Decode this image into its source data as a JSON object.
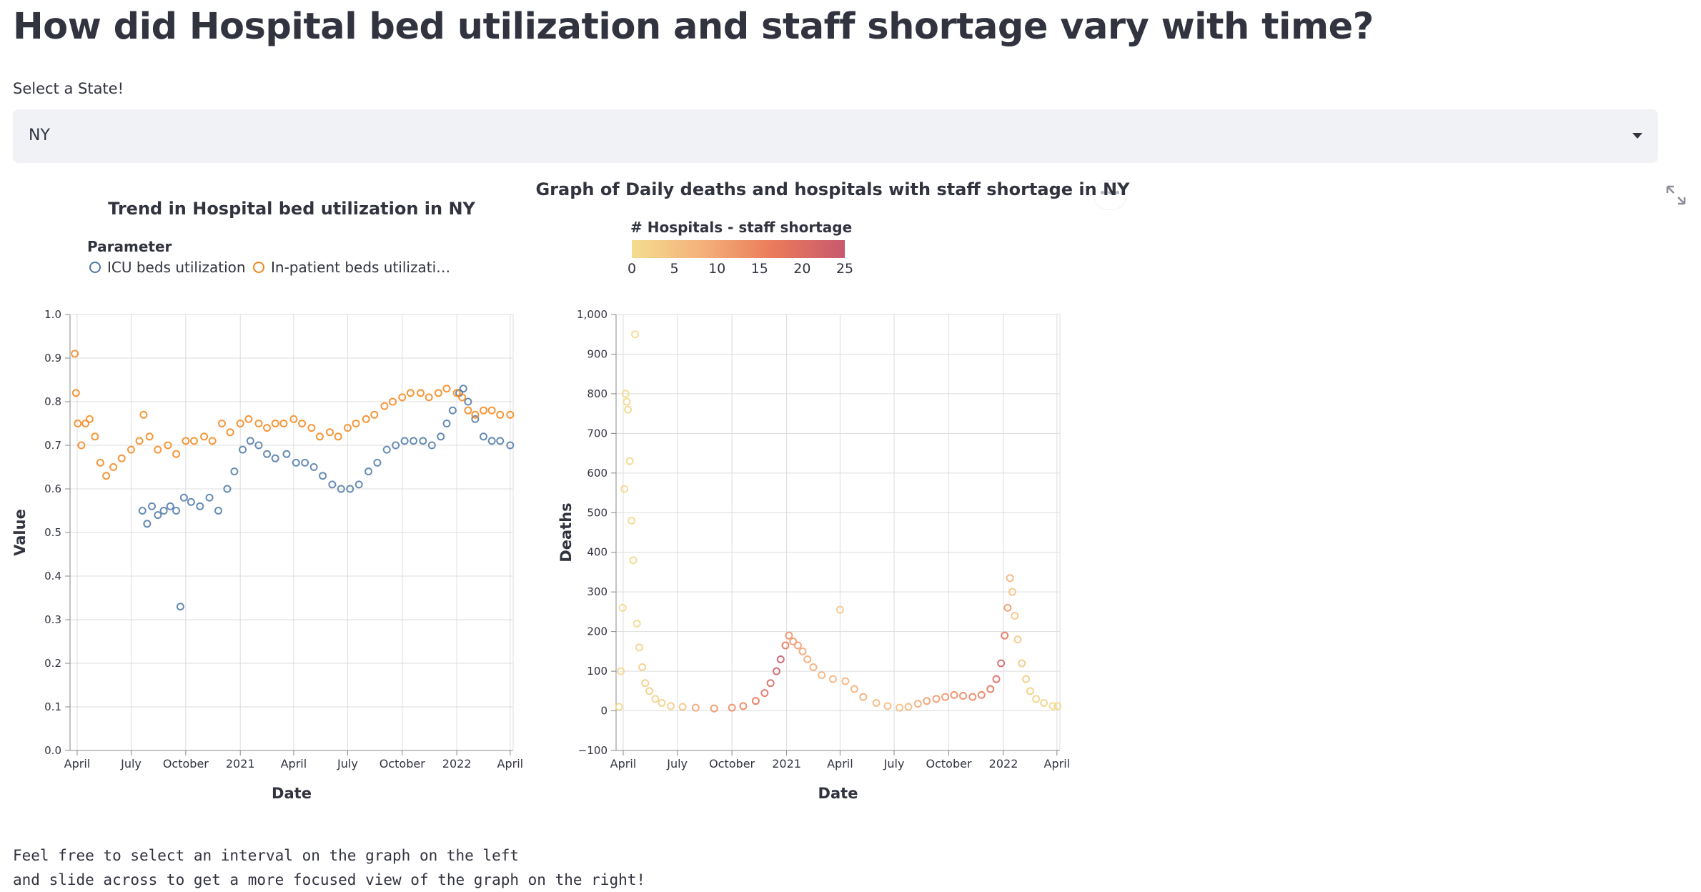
{
  "page": {
    "title": "How did Hospital bed utilization and staff shortage vary with time?",
    "select_label": "Select a State!",
    "selected_state": "NY",
    "menu_icon": "ellipsis-icon",
    "expand_icon": "fullscreen-expand-icon",
    "footer_line1": "Feel free to select an interval on the graph on the left",
    "footer_line2": "and slide across to get a more focused view of the graph on the right!"
  },
  "chart_data": [
    {
      "type": "scatter",
      "title": "Trend in Hospital bed utilization in NY",
      "xlabel": "Date",
      "ylabel": "Value",
      "x_type": "date",
      "x_range": [
        "2020-03-20",
        "2022-04-06"
      ],
      "xticks": [
        {
          "date": "2020-04-01",
          "label": "April"
        },
        {
          "date": "2020-07-01",
          "label": "July"
        },
        {
          "date": "2020-10-01",
          "label": "October"
        },
        {
          "date": "2021-01-01",
          "label": "2021"
        },
        {
          "date": "2021-04-01",
          "label": "April"
        },
        {
          "date": "2021-07-01",
          "label": "July"
        },
        {
          "date": "2021-10-01",
          "label": "October"
        },
        {
          "date": "2022-01-01",
          "label": "2022"
        },
        {
          "date": "2022-04-01",
          "label": "April"
        }
      ],
      "ylim": [
        0,
        1
      ],
      "yticks": [
        0.0,
        0.1,
        0.2,
        0.3,
        0.4,
        0.5,
        0.6,
        0.7,
        0.8,
        0.9,
        1.0
      ],
      "ytick_labels": [
        "0.0",
        "0.1",
        "0.2",
        "0.3",
        "0.4",
        "0.5",
        "0.6",
        "0.7",
        "0.8",
        "0.9",
        "1.0"
      ],
      "grid": true,
      "legend": {
        "title": "Parameter",
        "position": "top-left"
      },
      "series": [
        {
          "name": "ICU beds utilization",
          "color": "#4c78a8",
          "points": [
            [
              "2020-07-20",
              0.55
            ],
            [
              "2020-07-28",
              0.52
            ],
            [
              "2020-08-05",
              0.56
            ],
            [
              "2020-08-15",
              0.54
            ],
            [
              "2020-08-25",
              0.55
            ],
            [
              "2020-09-05",
              0.56
            ],
            [
              "2020-09-15",
              0.55
            ],
            [
              "2020-09-22",
              0.33
            ],
            [
              "2020-09-28",
              0.58
            ],
            [
              "2020-10-10",
              0.57
            ],
            [
              "2020-10-25",
              0.56
            ],
            [
              "2020-11-10",
              0.58
            ],
            [
              "2020-11-25",
              0.55
            ],
            [
              "2020-12-10",
              0.6
            ],
            [
              "2020-12-22",
              0.64
            ],
            [
              "2021-01-05",
              0.69
            ],
            [
              "2021-01-18",
              0.71
            ],
            [
              "2021-02-01",
              0.7
            ],
            [
              "2021-02-15",
              0.68
            ],
            [
              "2021-03-01",
              0.67
            ],
            [
              "2021-03-20",
              0.68
            ],
            [
              "2021-04-05",
              0.66
            ],
            [
              "2021-04-20",
              0.66
            ],
            [
              "2021-05-05",
              0.65
            ],
            [
              "2021-05-20",
              0.63
            ],
            [
              "2021-06-05",
              0.61
            ],
            [
              "2021-06-20",
              0.6
            ],
            [
              "2021-07-05",
              0.6
            ],
            [
              "2021-07-20",
              0.61
            ],
            [
              "2021-08-05",
              0.64
            ],
            [
              "2021-08-20",
              0.66
            ],
            [
              "2021-09-05",
              0.69
            ],
            [
              "2021-09-20",
              0.7
            ],
            [
              "2021-10-05",
              0.71
            ],
            [
              "2021-10-20",
              0.71
            ],
            [
              "2021-11-05",
              0.71
            ],
            [
              "2021-11-20",
              0.7
            ],
            [
              "2021-12-05",
              0.72
            ],
            [
              "2021-12-15",
              0.75
            ],
            [
              "2021-12-25",
              0.78
            ],
            [
              "2022-01-05",
              0.82
            ],
            [
              "2022-01-12",
              0.83
            ],
            [
              "2022-01-20",
              0.8
            ],
            [
              "2022-02-01",
              0.76
            ],
            [
              "2022-02-15",
              0.72
            ],
            [
              "2022-03-01",
              0.71
            ],
            [
              "2022-03-15",
              0.71
            ],
            [
              "2022-04-01",
              0.7
            ]
          ]
        },
        {
          "name": "In-patient beds utilizati…",
          "color": "#f58518",
          "points": [
            [
              "2020-03-28",
              0.91
            ],
            [
              "2020-03-30",
              0.82
            ],
            [
              "2020-04-02",
              0.75
            ],
            [
              "2020-04-08",
              0.7
            ],
            [
              "2020-04-15",
              0.75
            ],
            [
              "2020-04-22",
              0.76
            ],
            [
              "2020-05-01",
              0.72
            ],
            [
              "2020-05-10",
              0.66
            ],
            [
              "2020-05-20",
              0.63
            ],
            [
              "2020-06-01",
              0.65
            ],
            [
              "2020-06-15",
              0.67
            ],
            [
              "2020-07-01",
              0.69
            ],
            [
              "2020-07-15",
              0.71
            ],
            [
              "2020-07-22",
              0.77
            ],
            [
              "2020-08-01",
              0.72
            ],
            [
              "2020-08-15",
              0.69
            ],
            [
              "2020-09-01",
              0.7
            ],
            [
              "2020-09-15",
              0.68
            ],
            [
              "2020-10-01",
              0.71
            ],
            [
              "2020-10-15",
              0.71
            ],
            [
              "2020-11-01",
              0.72
            ],
            [
              "2020-11-15",
              0.71
            ],
            [
              "2020-12-01",
              0.75
            ],
            [
              "2020-12-15",
              0.73
            ],
            [
              "2021-01-01",
              0.75
            ],
            [
              "2021-01-15",
              0.76
            ],
            [
              "2021-02-01",
              0.75
            ],
            [
              "2021-02-15",
              0.74
            ],
            [
              "2021-03-01",
              0.75
            ],
            [
              "2021-03-15",
              0.75
            ],
            [
              "2021-04-01",
              0.76
            ],
            [
              "2021-04-15",
              0.75
            ],
            [
              "2021-05-01",
              0.74
            ],
            [
              "2021-05-15",
              0.72
            ],
            [
              "2021-06-01",
              0.73
            ],
            [
              "2021-06-15",
              0.72
            ],
            [
              "2021-07-01",
              0.74
            ],
            [
              "2021-07-15",
              0.75
            ],
            [
              "2021-08-01",
              0.76
            ],
            [
              "2021-08-15",
              0.77
            ],
            [
              "2021-09-01",
              0.79
            ],
            [
              "2021-09-15",
              0.8
            ],
            [
              "2021-10-01",
              0.81
            ],
            [
              "2021-10-15",
              0.82
            ],
            [
              "2021-11-01",
              0.82
            ],
            [
              "2021-11-15",
              0.81
            ],
            [
              "2021-12-01",
              0.82
            ],
            [
              "2021-12-15",
              0.83
            ],
            [
              "2022-01-01",
              0.82
            ],
            [
              "2022-01-10",
              0.81
            ],
            [
              "2022-01-20",
              0.78
            ],
            [
              "2022-02-01",
              0.77
            ],
            [
              "2022-02-15",
              0.78
            ],
            [
              "2022-03-01",
              0.78
            ],
            [
              "2022-03-15",
              0.77
            ],
            [
              "2022-04-01",
              0.77
            ]
          ]
        }
      ]
    },
    {
      "type": "scatter",
      "title": "Graph of Daily deaths and hospitals with staff shortage in NY",
      "xlabel": "Date",
      "ylabel": "Deaths",
      "x_type": "date",
      "x_range": [
        "2020-03-20",
        "2022-04-06"
      ],
      "xticks": [
        {
          "date": "2020-04-01",
          "label": "April"
        },
        {
          "date": "2020-07-01",
          "label": "July"
        },
        {
          "date": "2020-10-01",
          "label": "October"
        },
        {
          "date": "2021-01-01",
          "label": "2021"
        },
        {
          "date": "2021-04-01",
          "label": "April"
        },
        {
          "date": "2021-07-01",
          "label": "July"
        },
        {
          "date": "2021-10-01",
          "label": "October"
        },
        {
          "date": "2022-01-01",
          "label": "2022"
        },
        {
          "date": "2022-04-01",
          "label": "April"
        }
      ],
      "ylim": [
        -100,
        1000
      ],
      "yticks": [
        -100,
        0,
        100,
        200,
        300,
        400,
        500,
        600,
        700,
        800,
        900,
        1000
      ],
      "ytick_labels": [
        "−100",
        "0",
        "100",
        "200",
        "300",
        "400",
        "500",
        "600",
        "700",
        "800",
        "900",
        "1,000"
      ],
      "grid": true,
      "color_legend": {
        "title": "# Hospitals - staff shortage",
        "domain": [
          0,
          25
        ],
        "ticks": [
          0,
          5,
          10,
          15,
          20,
          25
        ],
        "tick_labels": [
          "0",
          "5",
          "10",
          "15",
          "20",
          "25"
        ],
        "colors": [
          "#f3dd8f",
          "#f5b07a",
          "#ea7a5a",
          "#c8596e"
        ],
        "position": "top-left"
      },
      "points": [
        [
          "2020-03-25",
          10,
          1
        ],
        [
          "2020-03-28",
          100,
          1
        ],
        [
          "2020-03-31",
          260,
          1
        ],
        [
          "2020-04-03",
          560,
          1
        ],
        [
          "2020-04-05",
          800,
          1
        ],
        [
          "2020-04-07",
          780,
          1
        ],
        [
          "2020-04-09",
          760,
          1
        ],
        [
          "2020-04-12",
          630,
          1
        ],
        [
          "2020-04-15",
          480,
          1
        ],
        [
          "2020-04-18",
          380,
          1
        ],
        [
          "2020-04-21",
          950,
          1
        ],
        [
          "2020-04-24",
          220,
          1
        ],
        [
          "2020-04-28",
          160,
          2
        ],
        [
          "2020-05-03",
          110,
          3
        ],
        [
          "2020-05-08",
          70,
          3
        ],
        [
          "2020-05-15",
          50,
          3
        ],
        [
          "2020-05-25",
          30,
          2
        ],
        [
          "2020-06-05",
          20,
          2
        ],
        [
          "2020-06-20",
          12,
          3
        ],
        [
          "2020-07-10",
          10,
          5
        ],
        [
          "2020-08-01",
          8,
          10
        ],
        [
          "2020-09-01",
          6,
          12
        ],
        [
          "2020-10-01",
          8,
          14
        ],
        [
          "2020-10-20",
          12,
          15
        ],
        [
          "2020-11-10",
          25,
          17
        ],
        [
          "2020-11-25",
          45,
          19
        ],
        [
          "2020-12-05",
          70,
          21
        ],
        [
          "2020-12-15",
          100,
          23
        ],
        [
          "2020-12-22",
          130,
          24
        ],
        [
          "2020-12-30",
          165,
          18
        ],
        [
          "2021-01-05",
          190,
          13
        ],
        [
          "2021-01-12",
          175,
          12
        ],
        [
          "2021-01-20",
          165,
          11
        ],
        [
          "2021-01-28",
          150,
          10
        ],
        [
          "2021-02-05",
          130,
          9
        ],
        [
          "2021-02-15",
          110,
          9
        ],
        [
          "2021-03-01",
          90,
          8
        ],
        [
          "2021-03-20",
          80,
          8
        ],
        [
          "2021-04-01",
          255,
          4
        ],
        [
          "2021-04-10",
          75,
          8
        ],
        [
          "2021-04-25",
          55,
          8
        ],
        [
          "2021-05-10",
          35,
          9
        ],
        [
          "2021-06-01",
          20,
          7
        ],
        [
          "2021-06-20",
          12,
          6
        ],
        [
          "2021-07-10",
          8,
          6
        ],
        [
          "2021-07-25",
          10,
          7
        ],
        [
          "2021-08-10",
          18,
          9
        ],
        [
          "2021-08-25",
          25,
          11
        ],
        [
          "2021-09-10",
          30,
          12
        ],
        [
          "2021-09-25",
          35,
          13
        ],
        [
          "2021-10-10",
          40,
          14
        ],
        [
          "2021-10-25",
          38,
          14
        ],
        [
          "2021-11-10",
          35,
          15
        ],
        [
          "2021-11-25",
          40,
          16
        ],
        [
          "2021-12-10",
          55,
          18
        ],
        [
          "2021-12-20",
          80,
          20
        ],
        [
          "2021-12-28",
          120,
          22
        ],
        [
          "2022-01-03",
          190,
          18
        ],
        [
          "2022-01-08",
          260,
          12
        ],
        [
          "2022-01-12",
          335,
          8
        ],
        [
          "2022-01-16",
          300,
          5
        ],
        [
          "2022-01-20",
          240,
          4
        ],
        [
          "2022-01-25",
          180,
          4
        ],
        [
          "2022-02-01",
          120,
          4
        ],
        [
          "2022-02-08",
          80,
          3
        ],
        [
          "2022-02-15",
          50,
          3
        ],
        [
          "2022-02-25",
          30,
          2
        ],
        [
          "2022-03-10",
          20,
          2
        ],
        [
          "2022-03-25",
          12,
          1
        ],
        [
          "2022-04-02",
          12,
          1
        ]
      ]
    }
  ]
}
